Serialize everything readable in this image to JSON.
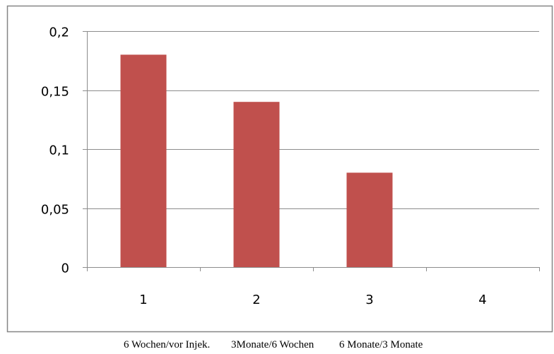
{
  "chart_data": {
    "type": "bar",
    "categories": [
      "1",
      "2",
      "3",
      "4"
    ],
    "values": [
      0.18,
      0.14,
      0.08,
      0
    ],
    "ylim": [
      0,
      0.2
    ],
    "yticks": [
      "0",
      "0,05",
      "0,1",
      "0,15",
      "0,2"
    ],
    "ytick_values": [
      0,
      0.05,
      0.1,
      0.15,
      0.2
    ],
    "grid": true,
    "legend": false,
    "bar_color": "#c0504d",
    "grid_color": "#8c8c8c",
    "border_color": "#868686"
  },
  "caption": {
    "labels": [
      "6 Wochen/vor Injek.",
      "3Monate/6 Wochen",
      "6 Monate/3 Monate"
    ]
  }
}
